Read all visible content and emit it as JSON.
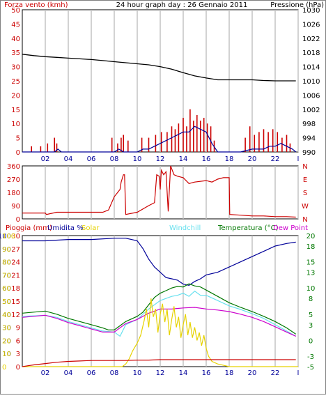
{
  "header": {
    "left": "Forza vento (kmh)",
    "center": "24 hour graph day : 26 Gennaio 2011",
    "right": "Pressione (hPa)"
  },
  "x_ticks": [
    "02",
    "04",
    "06",
    "08",
    "10",
    "12",
    "14",
    "16",
    "18",
    "20",
    "22",
    "I"
  ],
  "colors": {
    "frame": "#000000",
    "grid": "#bfbfbf",
    "red": "#cc0000",
    "blue": "#000099",
    "black": "#000000",
    "yellow": "#e6d200",
    "cyan": "#66e0ee",
    "green": "#007700",
    "magenta": "#cc00cc"
  },
  "chart_data": [
    {
      "type": "line",
      "title": "24 hour graph day : 26 Gennaio 2011",
      "x_range": [
        0,
        24
      ],
      "y_left": {
        "label": "Forza vento (kmh)",
        "ticks": [
          0,
          5,
          10,
          15,
          20,
          25,
          30,
          35,
          40,
          45,
          50
        ],
        "range": [
          0,
          50
        ]
      },
      "y_right": {
        "label": "Pressione (hPa)",
        "ticks": [
          990,
          994,
          998,
          1002,
          1006,
          1010,
          1014,
          1018,
          1022,
          1026,
          1030
        ],
        "range": [
          990,
          1030
        ]
      },
      "series": [
        {
          "color": "black",
          "axis": "right",
          "x": [
            0,
            1,
            2,
            3,
            4,
            5,
            6,
            7,
            8,
            9,
            10,
            11,
            12,
            13,
            14,
            15,
            16,
            17,
            18,
            19,
            20,
            21,
            22,
            23,
            23.8
          ],
          "y": [
            1017.5,
            1017.1,
            1016.8,
            1016.6,
            1016.4,
            1016.2,
            1016.0,
            1015.7,
            1015.4,
            1015.1,
            1014.8,
            1014.5,
            1014.0,
            1013.3,
            1012.3,
            1011.4,
            1010.8,
            1010.3,
            1010.3,
            1010.3,
            1010.3,
            1010.1,
            1010.0,
            1010.0,
            1010.0
          ]
        },
        {
          "color": "red",
          "axis": "left",
          "style": "gust-bars",
          "x": [
            0.8,
            1.6,
            2.2,
            2.8,
            3.0,
            7.8,
            8.3,
            8.6,
            8.8,
            9.2,
            10.4,
            11.0,
            11.6,
            12.1,
            12.6,
            13.0,
            13.3,
            13.6,
            14.0,
            14.3,
            14.6,
            14.9,
            15.2,
            15.5,
            15.8,
            16.1,
            16.4,
            16.7,
            19.4,
            19.8,
            20.2,
            20.6,
            21.0,
            21.4,
            21.8,
            22.2,
            22.6,
            23.0,
            23.3
          ],
          "y": [
            2,
            2,
            3,
            5,
            3,
            5,
            3,
            5,
            6,
            4,
            5,
            5,
            6,
            7,
            7,
            9,
            8,
            10,
            12,
            9,
            15,
            11,
            13,
            11,
            12,
            10,
            9,
            4,
            5,
            9,
            6,
            7,
            8,
            7,
            8,
            7,
            5,
            6,
            3
          ]
        },
        {
          "color": "blue",
          "axis": "left",
          "x": [
            0,
            2.8,
            3.1,
            3.4,
            3.7,
            4,
            8,
            8.4,
            8.8,
            9.2,
            10,
            10.5,
            11,
            11.5,
            12,
            12.5,
            13,
            13.5,
            14,
            14.5,
            15,
            15.5,
            16,
            16.5,
            17,
            18,
            19,
            20,
            21,
            21.5,
            22,
            22.5,
            23,
            23.5,
            23.8
          ],
          "y": [
            0,
            0,
            1,
            0,
            0,
            0,
            0,
            1,
            0,
            0,
            0,
            1,
            1,
            2,
            3,
            4,
            5,
            6,
            7,
            7,
            9,
            8,
            7,
            3,
            0,
            0,
            0,
            1,
            1,
            2,
            2,
            3,
            2,
            1,
            0
          ]
        }
      ]
    },
    {
      "type": "line",
      "y_left": {
        "ticks": [
          0,
          90,
          180,
          270,
          360
        ],
        "range": [
          0,
          360
        ]
      },
      "y_right": {
        "ticks": [
          "N",
          "E",
          "S",
          "W",
          "N"
        ]
      },
      "series": [
        {
          "color": "red",
          "x": [
            0,
            2,
            2.1,
            3,
            5,
            7,
            7.5,
            8,
            8.5,
            8.6,
            8.8,
            8.9,
            9,
            10,
            11,
            11.5,
            11.7,
            11.9,
            12.0,
            12.1,
            12.3,
            12.5,
            12.7,
            12.9,
            13.2,
            13.5,
            14,
            14.5,
            15,
            16,
            16.5,
            17,
            17.5,
            18,
            18.05,
            19,
            20,
            21,
            22,
            23,
            23.8
          ],
          "y": [
            40,
            40,
            30,
            45,
            45,
            45,
            60,
            150,
            200,
            250,
            300,
            300,
            30,
            45,
            90,
            110,
            300,
            290,
            200,
            330,
            300,
            320,
            50,
            360,
            300,
            290,
            280,
            240,
            250,
            260,
            250,
            270,
            280,
            280,
            30,
            25,
            20,
            20,
            15,
            15,
            12
          ]
        }
      ]
    },
    {
      "type": "line",
      "header_labels": [
        "Pioggia (mm)",
        "Umidita %",
        "Solar",
        "Windchill",
        "Temperatura (°C)",
        "Dew Point"
      ],
      "y_left_rain_ticks": [
        0,
        3,
        6,
        9,
        12,
        15,
        18,
        21,
        24,
        27,
        30
      ],
      "y_left_humidity_ticks": [
        10,
        20,
        30,
        40,
        50,
        60,
        70,
        80,
        90,
        100
      ],
      "y_left_solar_ticks": [
        0,
        10,
        20,
        30,
        40,
        50,
        60,
        70,
        80,
        90,
        100
      ],
      "y_right": {
        "ticks": [
          -5,
          -3,
          0,
          3,
          5,
          8,
          10,
          13,
          15,
          18,
          20
        ],
        "range": [
          -5,
          20
        ]
      },
      "series": [
        {
          "name": "Umidita %",
          "color": "blue",
          "x": [
            0,
            2,
            4,
            6,
            8,
            9,
            9.5,
            10,
            10.5,
            11,
            11.5,
            12,
            12.5,
            13,
            13.5,
            14,
            14.5,
            15,
            15.5,
            16,
            17,
            18,
            19,
            20,
            21,
            22,
            23,
            23.8
          ],
          "y": [
            96,
            96,
            97,
            97,
            98,
            98,
            97,
            96,
            90,
            82,
            76,
            72,
            68,
            67,
            66,
            63,
            62,
            65,
            67,
            70,
            72,
            76,
            80,
            84,
            88,
            92,
            94,
            95
          ]
        },
        {
          "name": "Temperatura (°C)",
          "color": "green",
          "x": [
            0,
            2,
            3,
            4,
            5,
            6,
            7,
            7.5,
            8,
            9,
            10,
            10.5,
            11,
            11.5,
            12,
            12.5,
            13,
            13.5,
            14,
            14.5,
            15,
            15.5,
            16,
            17,
            18,
            19,
            20,
            21,
            22,
            23,
            23.8
          ],
          "y": [
            5.2,
            5.6,
            5.0,
            4.2,
            3.6,
            3.0,
            2.4,
            2.0,
            2.0,
            3.6,
            4.6,
            5.4,
            6.8,
            8.2,
            9.0,
            9.5,
            10.0,
            10.3,
            10.2,
            10.8,
            10.4,
            10.2,
            9.6,
            8.4,
            7.2,
            6.3,
            5.5,
            4.6,
            3.6,
            2.4,
            1.2
          ]
        },
        {
          "name": "Windchill",
          "color": "cyan",
          "x": [
            0,
            2,
            3,
            4,
            5,
            6,
            7,
            8,
            8.5,
            9,
            10,
            11,
            12,
            12.5,
            13,
            13.5,
            14,
            14.5,
            15,
            15.5,
            16,
            17,
            18,
            19,
            20,
            21,
            22,
            23,
            23.8
          ],
          "y": [
            4.6,
            4.8,
            4.4,
            3.6,
            3.0,
            2.4,
            1.8,
            1.6,
            0.8,
            3.0,
            4.0,
            6.0,
            7.6,
            8.0,
            8.4,
            8.6,
            9.0,
            8.4,
            9.4,
            8.6,
            8.6,
            7.6,
            6.6,
            5.9,
            5.1,
            4.2,
            3.0,
            1.8,
            0.8
          ]
        },
        {
          "name": "Dew Point",
          "color": "magenta",
          "x": [
            0,
            2,
            3,
            4,
            5,
            6,
            7,
            8,
            9,
            10,
            11,
            12,
            13,
            14,
            15,
            16,
            17,
            18,
            19,
            20,
            21,
            22,
            23,
            23.8
          ],
          "y": [
            4.4,
            4.8,
            4.2,
            3.4,
            2.8,
            2.2,
            1.6,
            1.6,
            3.2,
            4.0,
            5.2,
            6.0,
            6.0,
            6.2,
            6.3,
            6.0,
            5.8,
            5.5,
            5.0,
            4.4,
            3.6,
            2.6,
            1.6,
            0.8
          ]
        },
        {
          "name": "Solar",
          "color": "yellow",
          "x": [
            0,
            8.7,
            9.0,
            9.3,
            9.6,
            10.0,
            10.3,
            10.6,
            10.8,
            11.0,
            11.2,
            11.4,
            11.6,
            11.8,
            12.0,
            12.2,
            12.4,
            12.6,
            12.8,
            13.0,
            13.2,
            13.4,
            13.6,
            13.8,
            14.0,
            14.2,
            14.4,
            14.6,
            14.8,
            15.0,
            15.2,
            15.4,
            15.6,
            15.8,
            16.0,
            16.2,
            16.5,
            17,
            17.5,
            18,
            24
          ],
          "y": [
            0,
            0,
            2,
            6,
            12,
            18,
            24,
            35,
            44,
            30,
            52,
            38,
            44,
            26,
            40,
            48,
            34,
            44,
            24,
            36,
            46,
            30,
            38,
            22,
            32,
            40,
            24,
            34,
            22,
            30,
            20,
            26,
            16,
            24,
            14,
            8,
            4,
            2,
            1,
            0,
            0
          ]
        },
        {
          "name": "Pioggia (mm)",
          "color": "red",
          "x": [
            0,
            0.5,
            1,
            2,
            3,
            4,
            5,
            6,
            7,
            8,
            9,
            10,
            11,
            12,
            13,
            14,
            15,
            16,
            17,
            18,
            19,
            20,
            21,
            22,
            23,
            23.8
          ],
          "y": [
            0,
            0.2,
            0.4,
            0.7,
            1.0,
            1.2,
            1.3,
            1.4,
            1.4,
            1.4,
            1.4,
            1.5,
            1.5,
            1.6,
            1.6,
            1.6,
            1.6,
            1.6,
            1.6,
            1.6,
            1.6,
            1.6,
            1.6,
            1.6,
            1.6,
            1.6
          ]
        }
      ]
    }
  ]
}
